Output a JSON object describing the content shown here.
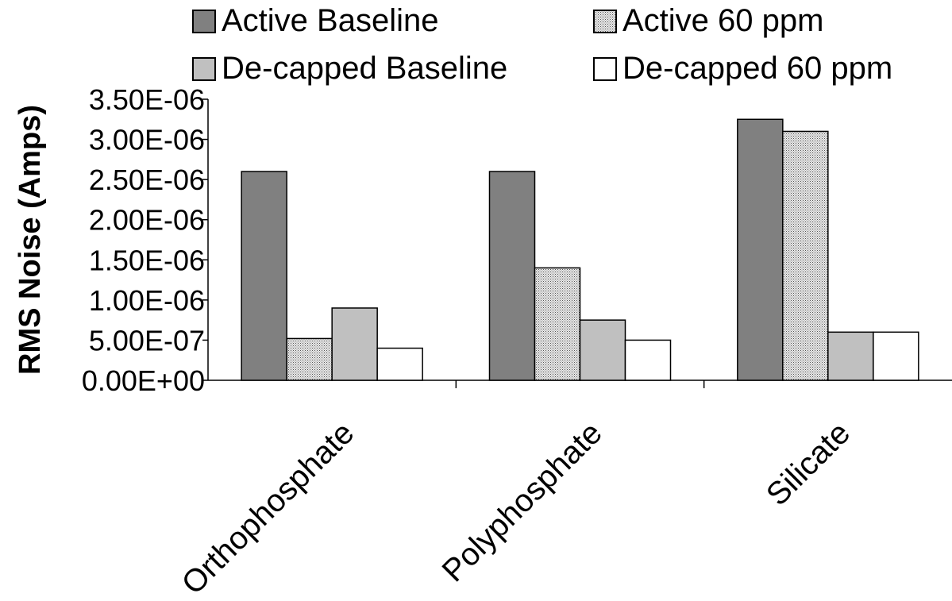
{
  "chart_data": {
    "type": "bar",
    "title": "",
    "xlabel": "",
    "ylabel": "RMS Noise (Amps)",
    "categories": [
      "Orthophosphate",
      "Polyphosphate",
      "Silicate"
    ],
    "ylim": [
      0,
      3.5e-06
    ],
    "yticks": [
      0,
      5e-07,
      1e-06,
      1.5e-06,
      2e-06,
      2.5e-06,
      3e-06,
      3.5e-06
    ],
    "ytick_labels": [
      "0.00E+00",
      "5.00E-07",
      "1.00E-06",
      "1.50E-06",
      "2.00E-06",
      "2.50E-06",
      "3.00E-06",
      "3.50E-06"
    ],
    "grid": false,
    "legend_position": "top",
    "series": [
      {
        "name": "Active Baseline",
        "fill": "#808080",
        "pattern": "solid",
        "values": [
          2.6e-06,
          2.6e-06,
          3.25e-06
        ]
      },
      {
        "name": "Active 60 ppm",
        "fill": "#d9d9d9",
        "pattern": "stipple",
        "values": [
          5.2e-07,
          1.4e-06,
          3.1e-06
        ]
      },
      {
        "name": "De-capped Baseline",
        "fill": "#c0c0c0",
        "pattern": "solid",
        "values": [
          9e-07,
          7.5e-07,
          6e-07
        ]
      },
      {
        "name": "De-capped 60 ppm",
        "fill": "#ffffff",
        "pattern": "solid",
        "values": [
          4e-07,
          5e-07,
          6e-07
        ]
      }
    ]
  }
}
